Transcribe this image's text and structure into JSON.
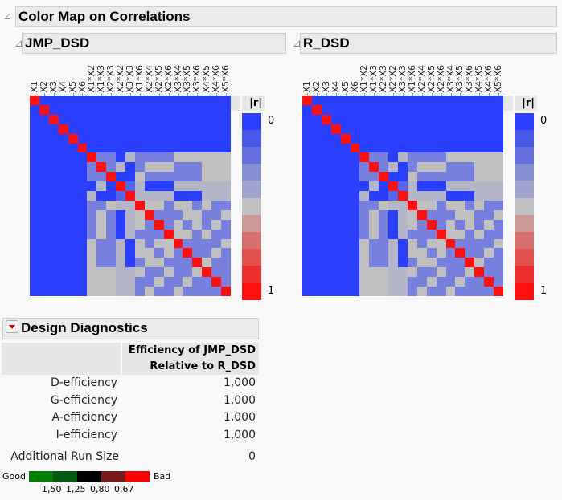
{
  "section_title": "Color Map on Correlations",
  "panels": [
    {
      "title": "JMP_DSD"
    },
    {
      "title": "R_DSD"
    }
  ],
  "terms": [
    "X1",
    "X2",
    "X3",
    "X4",
    "X5",
    "X6",
    "X1*X2",
    "X1*X3",
    "X2*X3",
    "X2*X2",
    "X3*X3",
    "X1*X6",
    "X2*X4",
    "X2*X5",
    "X2*X6",
    "X3*X4",
    "X3*X5",
    "X3*X6",
    "X4*X5",
    "X4*X6",
    "X5*X6"
  ],
  "correlation_abs": [
    [
      1,
      0,
      0,
      0,
      0,
      0,
      0,
      0,
      0,
      0,
      0,
      0,
      0,
      0,
      0,
      0,
      0,
      0,
      0,
      0,
      0
    ],
    [
      0,
      1,
      0,
      0,
      0,
      0,
      0,
      0,
      0,
      0,
      0,
      0,
      0,
      0,
      0,
      0,
      0,
      0,
      0,
      0,
      0
    ],
    [
      0,
      0,
      1,
      0,
      0,
      0,
      0,
      0,
      0,
      0,
      0,
      0,
      0,
      0,
      0,
      0,
      0,
      0,
      0,
      0,
      0
    ],
    [
      0,
      0,
      0,
      1,
      0,
      0,
      0,
      0,
      0,
      0,
      0,
      0,
      0,
      0,
      0,
      0,
      0,
      0,
      0,
      0,
      0
    ],
    [
      0,
      0,
      0,
      0,
      1,
      0,
      0,
      0,
      0,
      0,
      0,
      0,
      0,
      0,
      0,
      0,
      0,
      0,
      0,
      0,
      0
    ],
    [
      0,
      0,
      0,
      0,
      0,
      1,
      0,
      0,
      0,
      0,
      0,
      0,
      0,
      0,
      0,
      0,
      0,
      0,
      0,
      0,
      0
    ],
    [
      0,
      0,
      0,
      0,
      0,
      0,
      1,
      0.33,
      0.33,
      0,
      0.41,
      0.33,
      0.33,
      0.33,
      0.33,
      0.5,
      0.5,
      0.5,
      0.5,
      0.5,
      0.5
    ],
    [
      0,
      0,
      0,
      0,
      0,
      0,
      0.33,
      1,
      0.33,
      0.41,
      0,
      0.33,
      0.5,
      0.5,
      0.5,
      0.33,
      0.33,
      0.33,
      0.5,
      0.5,
      0.5
    ],
    [
      0,
      0,
      0,
      0,
      0,
      0,
      0.33,
      0.33,
      1,
      0,
      0,
      0.5,
      0.33,
      0.33,
      0.33,
      0.33,
      0.33,
      0.33,
      0.5,
      0.5,
      0.5
    ],
    [
      0,
      0,
      0,
      0,
      0,
      0,
      0,
      0.41,
      0,
      1,
      0.2,
      0.41,
      0,
      0,
      0,
      0.41,
      0.41,
      0.41,
      0.41,
      0.41,
      0.41
    ],
    [
      0,
      0,
      0,
      0,
      0,
      0,
      0.41,
      0,
      0,
      0.2,
      1,
      0.41,
      0.41,
      0.41,
      0.41,
      0,
      0,
      0,
      0.41,
      0.41,
      0.41
    ],
    [
      0,
      0,
      0,
      0,
      0,
      0,
      0.33,
      0.33,
      0.5,
      0.41,
      0.41,
      1,
      0.5,
      0.5,
      0.33,
      0.5,
      0.5,
      0.33,
      0.5,
      0.33,
      0.33
    ],
    [
      0,
      0,
      0,
      0,
      0,
      0,
      0.33,
      0.5,
      0.33,
      0,
      0.41,
      0.5,
      1,
      0.33,
      0.33,
      0.33,
      0.5,
      0.5,
      0.33,
      0.33,
      0.5
    ],
    [
      0,
      0,
      0,
      0,
      0,
      0,
      0.33,
      0.5,
      0.33,
      0,
      0.41,
      0.5,
      0.33,
      1,
      0.33,
      0.5,
      0.33,
      0.5,
      0.33,
      0.5,
      0.33
    ],
    [
      0,
      0,
      0,
      0,
      0,
      0,
      0.33,
      0.5,
      0.33,
      0,
      0.41,
      0.33,
      0.33,
      0.33,
      1,
      0.5,
      0.5,
      0.33,
      0.5,
      0.33,
      0.33
    ],
    [
      0,
      0,
      0,
      0,
      0,
      0,
      0.5,
      0.33,
      0.33,
      0.41,
      0,
      0.5,
      0.33,
      0.5,
      0.5,
      1,
      0.33,
      0.33,
      0.33,
      0.33,
      0.5
    ],
    [
      0,
      0,
      0,
      0,
      0,
      0,
      0.5,
      0.33,
      0.33,
      0.41,
      0,
      0.5,
      0.5,
      0.33,
      0.5,
      0.33,
      1,
      0.33,
      0.33,
      0.5,
      0.33
    ],
    [
      0,
      0,
      0,
      0,
      0,
      0,
      0.5,
      0.33,
      0.33,
      0.41,
      0,
      0.33,
      0.5,
      0.5,
      0.33,
      0.33,
      0.33,
      1,
      0.5,
      0.33,
      0.33
    ],
    [
      0,
      0,
      0,
      0,
      0,
      0,
      0.5,
      0.5,
      0.5,
      0.41,
      0.41,
      0.5,
      0.33,
      0.33,
      0.5,
      0.33,
      0.33,
      0.5,
      1,
      0.33,
      0.33
    ],
    [
      0,
      0,
      0,
      0,
      0,
      0,
      0.5,
      0.5,
      0.5,
      0.41,
      0.41,
      0.33,
      0.33,
      0.5,
      0.33,
      0.33,
      0.5,
      0.33,
      0.33,
      1,
      0.33
    ],
    [
      0,
      0,
      0,
      0,
      0,
      0,
      0.5,
      0.5,
      0.5,
      0.41,
      0.41,
      0.33,
      0.5,
      0.33,
      0.33,
      0.5,
      0.33,
      0.33,
      0.33,
      0.33,
      1
    ]
  ],
  "cell_colors": {
    "0": "#2b3fff",
    "0.2": "#5565ee",
    "0.33": "#7880dd",
    "0.41": "#b4b6c8",
    "0.5": "#c0c0c0",
    "1": "#ff0f0f"
  },
  "legend": {
    "header": "|r|",
    "min_label": "0",
    "max_label": "1",
    "colors": [
      "#2b3fff",
      "#4858e8",
      "#6570de",
      "#8890d4",
      "#a0a4cc",
      "#c0c0c0",
      "#cc9999",
      "#d97070",
      "#e35050",
      "#ef3030",
      "#ff1010"
    ]
  },
  "diagnostics": {
    "title": "Design Diagnostics",
    "column_header_line1": "Efficiency of JMP_DSD",
    "column_header_line2": "Relative to R_DSD",
    "rows": [
      {
        "label": "D-efficiency",
        "value": "1,000"
      },
      {
        "label": "G-efficiency",
        "value": "1,000"
      },
      {
        "label": "A-efficiency",
        "value": "1,000"
      },
      {
        "label": "I-efficiency",
        "value": "1,000"
      }
    ],
    "additional_run_size_label": "Additional Run Size",
    "additional_run_size_value": "0",
    "scale": {
      "good_label": "Good",
      "bad_label": "Bad",
      "colors": [
        "#008000",
        "#005a10",
        "#000000",
        "#7a1a1a",
        "#ff0000"
      ],
      "ticks": [
        "1,50",
        "1,25",
        "0,80",
        "0,67"
      ]
    }
  }
}
